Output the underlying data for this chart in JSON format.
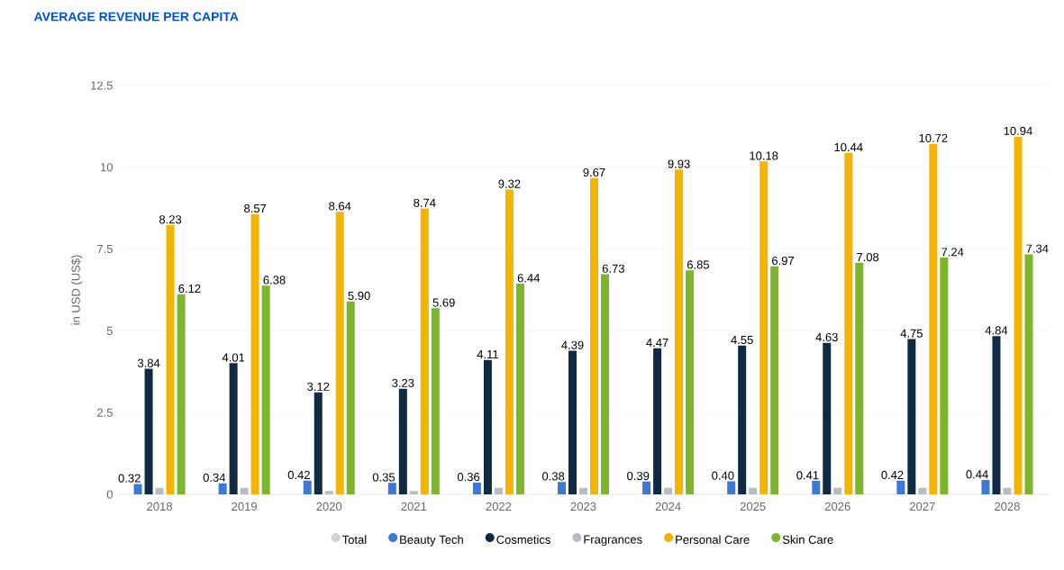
{
  "chart_data": {
    "type": "bar",
    "title": "AVERAGE REVENUE PER CAPITA",
    "ylabel": "in USD (US$)",
    "categories": [
      "2018",
      "2019",
      "2020",
      "2021",
      "2022",
      "2023",
      "2024",
      "2025",
      "2026",
      "2027",
      "2028"
    ],
    "series": [
      {
        "name": "Total",
        "color": "#d3d3d3",
        "values": [
          null,
          null,
          null,
          null,
          null,
          null,
          null,
          null,
          null,
          null,
          null
        ]
      },
      {
        "name": "Beauty Tech",
        "color": "#3b78d8",
        "values": [
          0.32,
          0.34,
          0.42,
          0.35,
          0.36,
          0.38,
          0.39,
          0.4,
          0.41,
          0.42,
          0.44
        ],
        "value_labels": [
          "0.32",
          "0.34",
          "0.42",
          "0.35",
          "0.36",
          "0.38",
          "0.39",
          "0.40",
          "0.41",
          "0.42",
          "0.44"
        ]
      },
      {
        "name": "Cosmetics",
        "color": "#0f2a45",
        "values": [
          3.84,
          4.01,
          3.12,
          3.23,
          4.11,
          4.39,
          4.47,
          4.55,
          4.63,
          4.75,
          4.84
        ],
        "value_labels": [
          "3.84",
          "4.01",
          "3.12",
          "3.23",
          "4.11",
          "4.39",
          "4.47",
          "4.55",
          "4.63",
          "4.75",
          "4.84"
        ]
      },
      {
        "name": "Fragrances",
        "color": "#b8bcc4",
        "values": [
          0.2,
          0.2,
          0.1,
          0.1,
          0.2,
          0.2,
          0.2,
          0.2,
          0.2,
          0.2,
          0.2
        ]
      },
      {
        "name": "Personal Care",
        "color": "#f5b400",
        "values": [
          8.23,
          8.57,
          8.64,
          8.74,
          9.32,
          9.67,
          9.93,
          10.18,
          10.44,
          10.72,
          10.94
        ],
        "value_labels": [
          "8.23",
          "8.57",
          "8.64",
          "8.74",
          "9.32",
          "9.67",
          "9.93",
          "10.18",
          "10.44",
          "10.72",
          "10.94"
        ]
      },
      {
        "name": "Skin Care",
        "color": "#7bb62d",
        "values": [
          6.12,
          6.38,
          5.9,
          5.69,
          6.44,
          6.73,
          6.85,
          6.97,
          7.08,
          7.24,
          7.34
        ],
        "value_labels": [
          "6.12",
          "6.38",
          "5.90",
          "5.69",
          "6.44",
          "6.73",
          "6.85",
          "6.97",
          "7.08",
          "7.24",
          "7.34"
        ]
      }
    ],
    "ylim": [
      0,
      12.5
    ],
    "yticks": [
      0,
      2.5,
      5,
      7.5,
      10,
      12.5
    ],
    "grid": "y",
    "legend": "bottom"
  }
}
